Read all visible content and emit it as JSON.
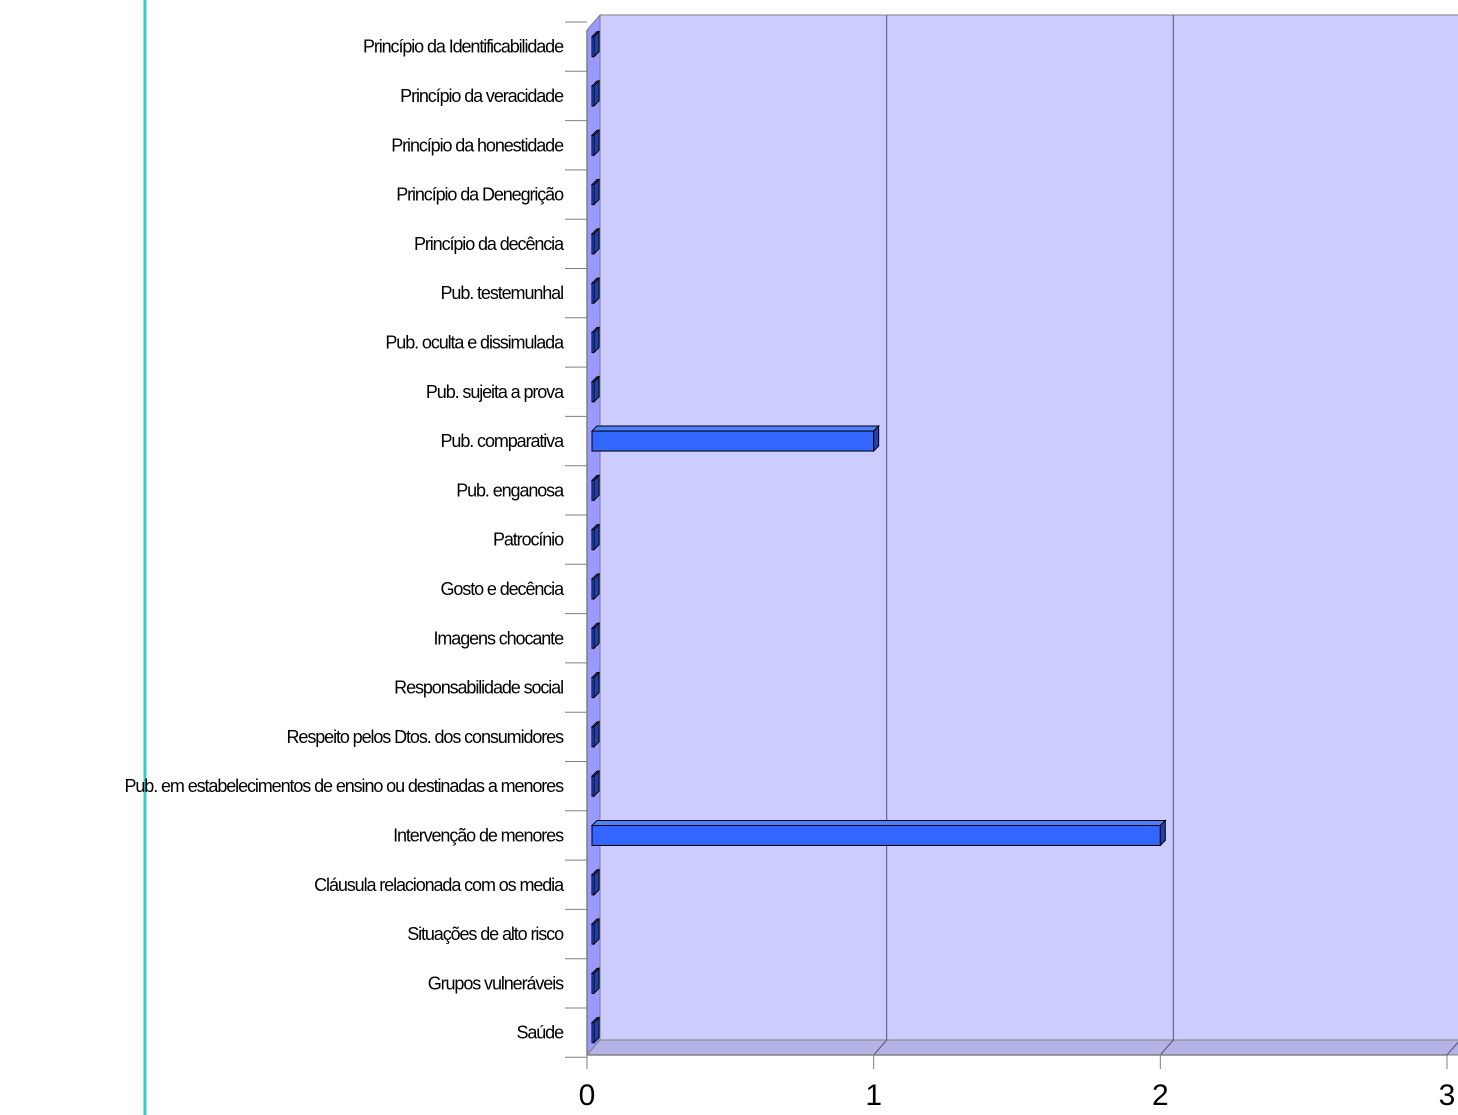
{
  "chart_data": {
    "type": "bar",
    "orientation": "horizontal",
    "style": "3d",
    "categories": [
      "Princípio da Identificabilidade",
      "Princípio da veracidade",
      "Princípio da honestidade",
      "Princípio da Denegrição",
      "Princípio da decência",
      "Pub. testemunhal",
      "Pub. oculta e dissimulada",
      "Pub. sujeita a prova",
      "Pub. comparativa",
      "Pub. enganosa",
      "Patrocínio",
      "Gosto e decência",
      "Imagens chocante",
      "Responsabilidade social",
      "Respeito pelos Dtos. dos consumidores",
      "Pub. em estabelecimentos de ensino ou destinadas a menores",
      "Intervenção de menores",
      "Cláusula relacionada com os media",
      "Situações de alto risco",
      "Grupos vulneráveis",
      "Saúde"
    ],
    "values": [
      0,
      0,
      0,
      0,
      0,
      0,
      0,
      0,
      1,
      0,
      0,
      0,
      0,
      0,
      0,
      0,
      2,
      0,
      0,
      0,
      0
    ],
    "xlim": [
      0,
      3
    ],
    "xticks": [
      "0",
      "1",
      "2",
      "3"
    ],
    "title": "",
    "xlabel": "",
    "ylabel": "",
    "grid": "vertical",
    "legend": "none",
    "colors": {
      "plot_background": "#ccccff",
      "wall_side": "#9999ff",
      "floor": "#b3b3e6",
      "bar_front": "#3366ff",
      "bar_top": "#4d80ff",
      "bar_side": "#2040b0",
      "gridline": "#000000",
      "decor_line": "#33cccc"
    }
  }
}
